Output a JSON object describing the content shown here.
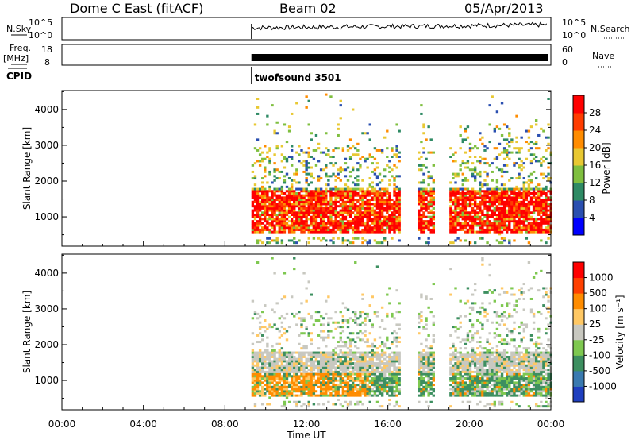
{
  "header": {
    "site": "Dome C East (fitACF)",
    "beam": "Beam 02",
    "date": "05/Apr/2013"
  },
  "small_panels": {
    "nsky_label": "N.Sky",
    "nsky_ticks": [
      "10^5",
      "10^0"
    ],
    "nsearch_label": "N.Search",
    "nsearch_ticks": [
      "10^5",
      "10^0"
    ],
    "freq_label": "Freq.",
    "freq_unit": "[MHz]",
    "freq_ticks": [
      "18",
      "8"
    ],
    "nave_label": "Nave",
    "nave_ticks": [
      "60",
      "0"
    ],
    "cpid_label": "CPID",
    "cpid_value": "twofsound 3501"
  },
  "chart_data": [
    {
      "type": "heatmap",
      "name": "power",
      "ylabel": "Slant Range [km]",
      "yticks": [
        1000,
        2000,
        3000,
        4000
      ],
      "ylim": [
        180,
        4530
      ],
      "xlim_hours": [
        0,
        24
      ],
      "colorbar_label": "Power [dB]",
      "colorbar_ticks": [
        "28",
        "24",
        "20",
        "16",
        "12",
        "8",
        "4"
      ],
      "colorbar_colors": [
        "#0000ff",
        "#2a4fb0",
        "#2e8a64",
        "#7fbf3f",
        "#e8c832",
        "#ff8c00",
        "#ff3c00",
        "#ff0000"
      ],
      "data_start_hour": 9.3
    },
    {
      "type": "heatmap",
      "name": "velocity",
      "ylabel": "Slant Range [km]",
      "yticks": [
        1000,
        2000,
        3000,
        4000
      ],
      "ylim": [
        180,
        4530
      ],
      "xlim_hours": [
        0,
        24
      ],
      "colorbar_label": "Velocity [m s⁻¹]",
      "colorbar_ticks": [
        "1000",
        "500",
        "100",
        "25",
        "-25",
        "-100",
        "-500",
        "-1000"
      ],
      "colorbar_colors": [
        "#1f3fbf",
        "#3a7ab0",
        "#3d8f60",
        "#7ec850",
        "#c8c8c0",
        "#ffc864",
        "#ff8c00",
        "#ff4000",
        "#ff0000"
      ],
      "data_start_hour": 9.3
    }
  ],
  "xaxis": {
    "label": "Time UT",
    "ticks": [
      "00:00",
      "04:00",
      "08:00",
      "12:00",
      "16:00",
      "20:00",
      "00:00"
    ],
    "tick_hours": [
      0,
      4,
      8,
      12,
      16,
      20,
      24
    ]
  }
}
